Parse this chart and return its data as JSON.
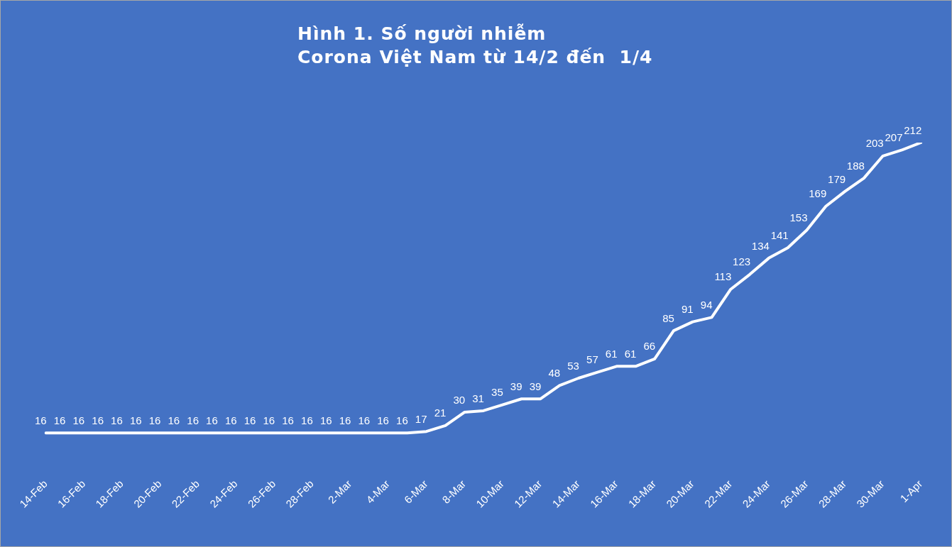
{
  "chart_data": {
    "type": "line",
    "title": "Hình 1. Số người nhiễm\nCorona Việt Nam từ 14/2 đến  1/4",
    "categories": [
      "14-Feb",
      null,
      "16-Feb",
      null,
      "18-Feb",
      null,
      "20-Feb",
      null,
      "22-Feb",
      null,
      "24-Feb",
      null,
      "26-Feb",
      null,
      "28-Feb",
      null,
      "2-Mar",
      null,
      "4-Mar",
      null,
      "6-Mar",
      null,
      "8-Mar",
      null,
      "10-Mar",
      null,
      "12-Mar",
      null,
      "14-Mar",
      null,
      "16-Mar",
      null,
      "18-Mar",
      null,
      "20-Mar",
      null,
      "22-Mar",
      null,
      "24-Mar",
      null,
      "26-Mar",
      null,
      "28-Mar",
      null,
      "30-Mar",
      null,
      "1-Apr"
    ],
    "series": [
      {
        "color": "#ffffff",
        "values": [
          16,
          16,
          16,
          16,
          16,
          16,
          16,
          16,
          16,
          16,
          16,
          16,
          16,
          16,
          16,
          16,
          16,
          16,
          16,
          16,
          17,
          21,
          30,
          31,
          35,
          39,
          39,
          48,
          53,
          57,
          61,
          61,
          66,
          85,
          91,
          94,
          113,
          123,
          134,
          141,
          153,
          169,
          179,
          188,
          203,
          207,
          212
        ]
      }
    ],
    "data_labels": true,
    "marker": "none",
    "line_style": "solid",
    "grid": false,
    "legend": false,
    "tick_labels": "x"
  }
}
